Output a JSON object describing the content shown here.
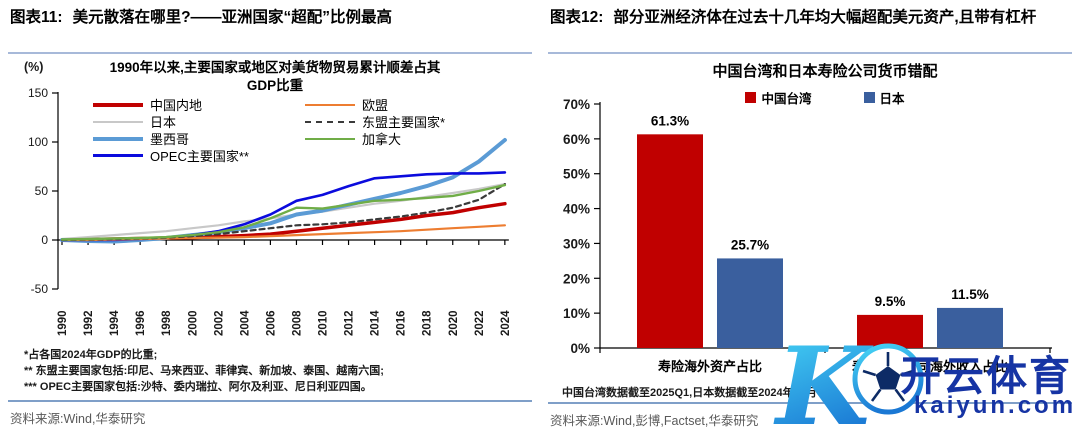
{
  "left": {
    "figure_label": "图表11:",
    "title": "美元散落在哪里?——亚洲国家“超配”比例最高",
    "unit": "(%)",
    "subtitle1": "1990年以来,主要国家或地区对美货物贸易累计顺差占其",
    "subtitle2": "GDP比重",
    "footnotes": [
      "*占各国2024年GDP的比重;",
      "** 东盟主要国家包括:印尼、马来西亚、菲律宾、新加坡、泰国、越南六国;",
      "*** OPEC主要国家包括:沙特、委内瑞拉、阿尔及利亚、尼日利亚四国。"
    ],
    "source": "资料来源:Wind,华泰研究"
  },
  "right": {
    "figure_label": "图表12:",
    "title": "部分亚洲经济体在过去十几年均大幅超配美元资产,且带有杠杆",
    "note": "中国台湾数据截至2025Q1,日本数据截至2024年12月",
    "source": "资料来源:Wind,彭博,Factset,华泰研究"
  },
  "watermark": {
    "logo_letter": "K",
    "brand_cn": "开云体育",
    "brand_url": "kaiyun.com",
    "color": "#1634a4"
  },
  "chart_data": [
    {
      "type": "line",
      "title": "1990年以来,主要国家或地区对美货物贸易累计顺差占其GDP比重",
      "unit": "%",
      "x": [
        1990,
        1992,
        1994,
        1996,
        1998,
        2000,
        2002,
        2004,
        2006,
        2008,
        2010,
        2012,
        2014,
        2016,
        2018,
        2020,
        2022,
        2024
      ],
      "ylim": [
        -50,
        150
      ],
      "yticks": [
        150,
        100,
        50,
        0,
        -50
      ],
      "grid": false,
      "legend_position": "top",
      "legend_columns": [
        [
          0,
          1,
          2,
          3
        ],
        [
          4,
          5,
          6
        ]
      ],
      "series": [
        {
          "name": "中国内地",
          "color": "#C00000",
          "width": 3.5,
          "dash": null,
          "values": [
            0,
            0.5,
            1,
            1.5,
            2,
            2.5,
            3.5,
            4.5,
            6,
            9,
            12,
            15,
            18,
            21,
            25,
            28,
            33,
            37
          ]
        },
        {
          "name": "日本",
          "color": "#C8C8C8",
          "width": 2.2,
          "dash": null,
          "values": [
            1,
            3,
            5,
            7,
            9,
            12,
            15,
            19,
            22,
            26,
            29,
            33,
            37,
            40,
            44,
            48,
            52,
            57
          ]
        },
        {
          "name": "墨西哥",
          "color": "#5B9BD5",
          "width": 4,
          "dash": null,
          "values": [
            0,
            -1,
            -1.5,
            0,
            2,
            5,
            8,
            12,
            17,
            26,
            30,
            36,
            42,
            48,
            55,
            64,
            80,
            102
          ]
        },
        {
          "name": "OPEC主要国家**",
          "color": "#0B0BDD",
          "width": 2.6,
          "dash": null,
          "values": [
            0,
            0,
            0,
            1,
            2,
            5,
            9,
            16,
            26,
            40,
            46,
            55,
            63,
            65,
            67,
            68,
            68,
            69
          ]
        },
        {
          "name": "欧盟",
          "color": "#ED7D31",
          "width": 2.2,
          "dash": null,
          "values": [
            0,
            0,
            0.5,
            1,
            1.5,
            2,
            2.5,
            3,
            4,
            5,
            6,
            7,
            8,
            9,
            10.5,
            12,
            13.5,
            15
          ]
        },
        {
          "name": "东盟主要国家*",
          "color": "#3A3A3A",
          "width": 2.2,
          "dash": "5,4",
          "values": [
            0,
            0.5,
            1,
            1.5,
            2.5,
            4,
            6,
            9,
            12,
            15,
            16,
            18,
            21,
            24,
            28,
            33,
            41,
            57
          ]
        },
        {
          "name": "加拿大",
          "color": "#70AD47",
          "width": 2.4,
          "dash": null,
          "values": [
            0.5,
            1,
            1.5,
            2,
            3,
            5,
            8,
            13,
            22,
            33,
            32,
            36,
            40,
            41,
            43,
            45,
            50,
            56
          ]
        }
      ]
    },
    {
      "type": "bar",
      "title": "中国台湾和日本寿险公司货币错配",
      "categories": [
        "寿险海外资产占比",
        "寿险上市公司海外收入占比"
      ],
      "series": [
        {
          "name": "中国台湾",
          "color": "#C00000",
          "values": [
            61.3,
            9.5
          ]
        },
        {
          "name": "日本",
          "color": "#3A5F9E",
          "values": [
            25.7,
            11.5
          ]
        }
      ],
      "value_labels": [
        "61.3%",
        "25.7%",
        "9.5%",
        "11.5%"
      ],
      "ylim": [
        0,
        70
      ],
      "yticks": [
        0,
        10,
        20,
        30,
        40,
        50,
        60,
        70
      ],
      "ytick_suffix": "%",
      "grid": false,
      "legend_position": "top"
    }
  ]
}
